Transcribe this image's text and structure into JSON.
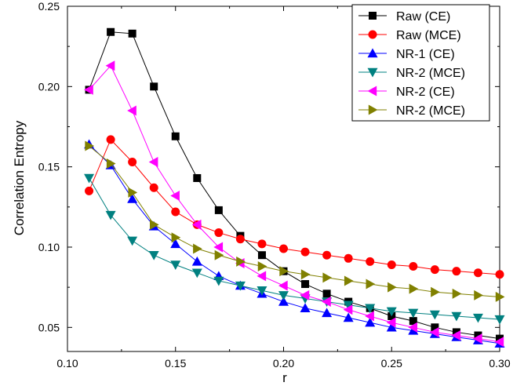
{
  "chart_data": {
    "type": "line",
    "xlabel": "r",
    "ylabel": "Correlation Entropy",
    "xlim": [
      0.1,
      0.3
    ],
    "ylim": [
      0.035,
      0.25
    ],
    "xticks": [
      "0.10",
      "0.15",
      "0.20",
      "0.25",
      "0.30"
    ],
    "yticks": [
      "0.05",
      "0.10",
      "0.15",
      "0.20",
      "0.25"
    ],
    "grid": false,
    "legend_position": "top-right",
    "x": [
      0.11,
      0.12,
      0.13,
      0.14,
      0.15,
      0.16,
      0.17,
      0.18,
      0.19,
      0.2,
      0.21,
      0.22,
      0.23,
      0.24,
      0.25,
      0.26,
      0.27,
      0.28,
      0.29,
      0.3
    ],
    "series": [
      {
        "name": "Raw (CE)",
        "color": "#000000",
        "marker": "square",
        "values": [
          0.198,
          0.234,
          0.233,
          0.2,
          0.169,
          0.143,
          0.123,
          0.107,
          0.095,
          0.085,
          0.077,
          0.071,
          0.066,
          0.062,
          0.057,
          0.054,
          0.05,
          0.047,
          0.045,
          0.043
        ]
      },
      {
        "name": "Raw (MCE)",
        "color": "#ff0000",
        "marker": "circle",
        "values": [
          0.135,
          0.167,
          0.153,
          0.137,
          0.122,
          0.114,
          0.109,
          0.105,
          0.102,
          0.099,
          0.097,
          0.095,
          0.093,
          0.091,
          0.089,
          0.088,
          0.086,
          0.085,
          0.084,
          0.083
        ]
      },
      {
        "name": "NR-1 (CE)",
        "color": "#0000ff",
        "marker": "triangle-up",
        "values": [
          0.164,
          0.151,
          0.13,
          0.113,
          0.102,
          0.091,
          0.082,
          0.076,
          0.071,
          0.066,
          0.062,
          0.059,
          0.056,
          0.053,
          0.05,
          0.048,
          0.046,
          0.044,
          0.042,
          0.04
        ]
      },
      {
        "name": "NR-2 (MCE)",
        "color": "#008080",
        "marker": "triangle-down",
        "values": [
          0.143,
          0.12,
          0.104,
          0.095,
          0.089,
          0.084,
          0.079,
          0.076,
          0.073,
          0.07,
          0.068,
          0.066,
          0.064,
          0.062,
          0.06,
          0.059,
          0.058,
          0.057,
          0.056,
          0.055
        ]
      },
      {
        "name": "NR-2 (CE)",
        "color": "#ff00ff",
        "marker": "triangle-left",
        "values": [
          0.198,
          0.213,
          0.185,
          0.153,
          0.132,
          0.114,
          0.1,
          0.09,
          0.082,
          0.076,
          0.07,
          0.066,
          0.061,
          0.057,
          0.053,
          0.05,
          0.047,
          0.045,
          0.043,
          0.041
        ]
      },
      {
        "name": "NR-2 (MCE)",
        "color": "#808000",
        "marker": "triangle-right",
        "values": [
          0.163,
          0.152,
          0.134,
          0.114,
          0.106,
          0.099,
          0.095,
          0.091,
          0.088,
          0.085,
          0.083,
          0.081,
          0.079,
          0.077,
          0.075,
          0.074,
          0.072,
          0.071,
          0.07,
          0.069
        ]
      }
    ]
  }
}
